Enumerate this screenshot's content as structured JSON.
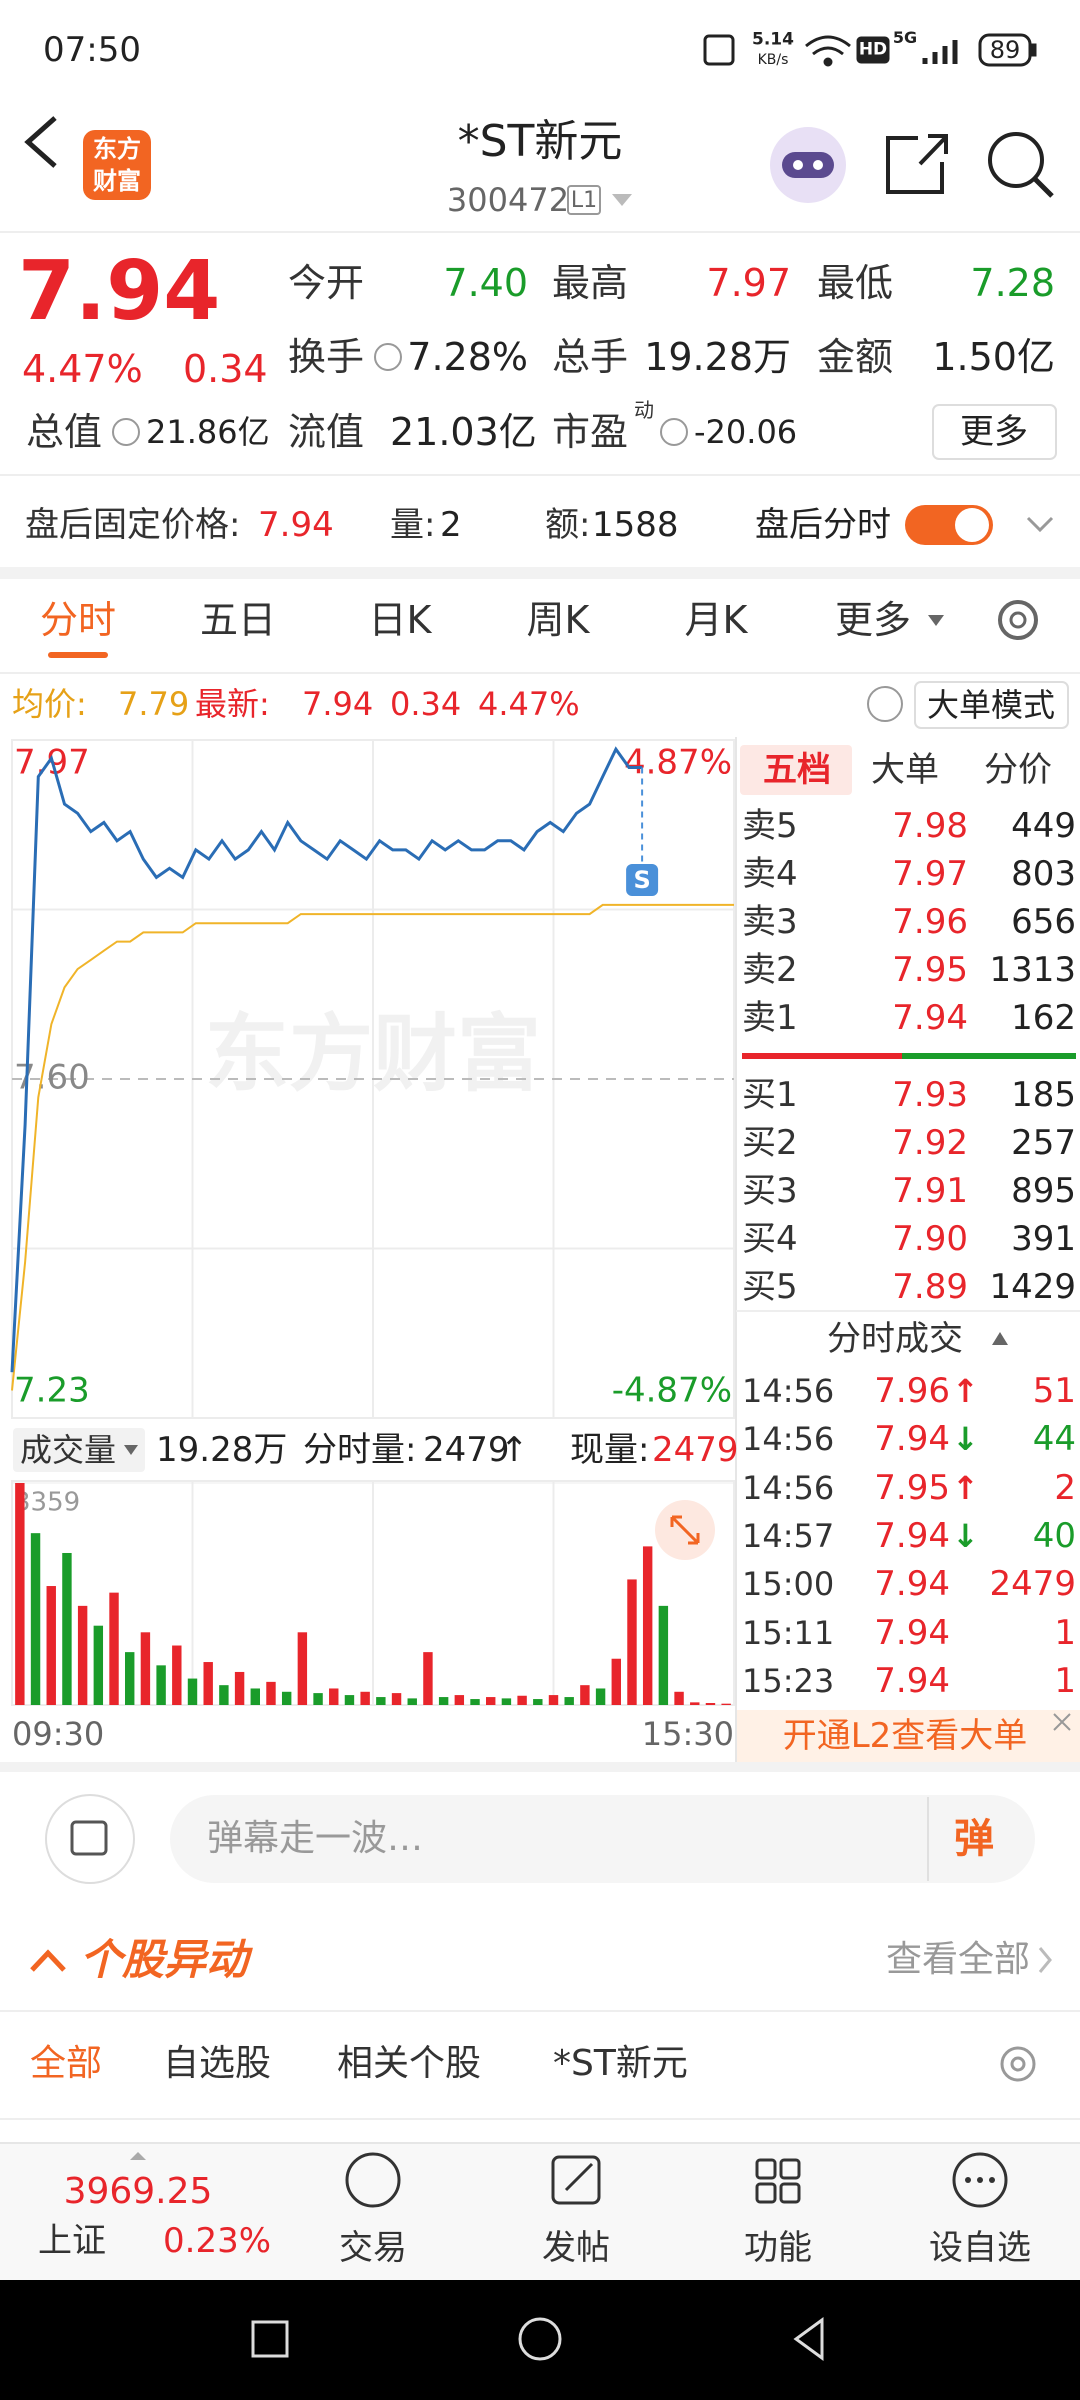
{
  "status": {
    "time": "07:50",
    "speed": "5.14",
    "speed_unit": "KB/s",
    "hd": "HD",
    "network": "5G",
    "battery": "89"
  },
  "header": {
    "logo": [
      "东方",
      "财富"
    ],
    "title": "*ST新元",
    "code": "300472",
    "level": "L1"
  },
  "quote": {
    "price": "7.94",
    "change_pct": "4.47%",
    "change": "0.34",
    "stats": [
      [
        {
          "label": "今开",
          "value": "7.40",
          "color": "#1a9c2a"
        },
        {
          "label": "最高",
          "value": "7.97",
          "color": "#e8252b"
        },
        {
          "label": "最低",
          "value": "7.28",
          "color": "#1a9c2a"
        }
      ],
      [
        {
          "label": "换手",
          "value": "7.28%"
        },
        {
          "label": "总手",
          "value": "19.28万"
        },
        {
          "label": "金额",
          "value": "1.50亿"
        }
      ],
      [
        {
          "label": "总值",
          "value": "21.86亿"
        },
        {
          "label": "流值",
          "value": "21.03亿"
        },
        {
          "label": "市盈",
          "sup": "动",
          "value": "-20.06"
        }
      ]
    ],
    "more": "更多"
  },
  "after_hours": {
    "label": "盘后固定价格:",
    "price": "7.94",
    "vol_label": "量:",
    "vol": "2",
    "amt_label": "额:",
    "amt": "1588",
    "toggle_label": "盘后分时"
  },
  "tabs": [
    "分时",
    "五日",
    "日K",
    "周K",
    "月K",
    "更多"
  ],
  "info": {
    "avg_label": "均价:",
    "avg": "7.79",
    "latest_label": "最新:",
    "latest": "7.94",
    "change": "0.34",
    "pct": "4.47%",
    "mode": "大单模式"
  },
  "chart_data": [
    {
      "type": "line",
      "watermark": "东方财富",
      "marker": "S",
      "series": [
        {
          "color": "#2a6db5",
          "values": [
            7.28,
            7.55,
            7.93,
            7.95,
            7.9,
            7.89,
            7.87,
            7.88,
            7.86,
            7.87,
            7.84,
            7.82,
            7.83,
            7.82,
            7.85,
            7.84,
            7.86,
            7.84,
            7.85,
            7.87,
            7.85,
            7.88,
            7.86,
            7.85,
            7.84,
            7.86,
            7.85,
            7.84,
            7.86,
            7.85,
            7.85,
            7.84,
            7.86,
            7.85,
            7.86,
            7.85,
            7.85,
            7.86,
            7.86,
            7.85,
            7.87,
            7.88,
            7.87,
            7.89,
            7.9,
            7.93,
            7.96,
            7.94,
            7.94,
            null,
            null,
            null,
            null,
            null,
            null,
            null
          ]
        },
        {
          "color": "#f0b429",
          "values": [
            7.26,
            7.4,
            7.58,
            7.66,
            7.7,
            7.72,
            7.73,
            7.74,
            7.75,
            7.75,
            7.76,
            7.76,
            7.76,
            7.76,
            7.77,
            7.77,
            7.77,
            7.77,
            7.77,
            7.77,
            7.77,
            7.77,
            7.78,
            7.78,
            7.78,
            7.78,
            7.78,
            7.78,
            7.78,
            7.78,
            7.78,
            7.78,
            7.78,
            7.78,
            7.78,
            7.78,
            7.78,
            7.78,
            7.78,
            7.78,
            7.78,
            7.78,
            7.78,
            7.78,
            7.78,
            7.79,
            7.79,
            7.79,
            7.79,
            7.79,
            7.79,
            7.79,
            7.79,
            7.79,
            7.79,
            7.79
          ]
        }
      ],
      "ylim": [
        7.23,
        7.97
      ],
      "yticks": [
        7.97,
        {
          "value": 7.6,
          "label": "7.60"
        },
        7.23
      ],
      "tick_colors": [
        "#e8252b",
        "#888888",
        "#1a9c2a"
      ],
      "y2lim": [
        -4.87,
        4.87
      ],
      "y2ticks": [
        {
          "value": 4.87,
          "label": "4.87%"
        },
        {
          "value": -4.87,
          "label": "-4.87%"
        }
      ],
      "y2tick_colors": [
        "#e8252b",
        "#1a9c2a"
      ],
      "grid": true
    },
    {
      "type": "bar",
      "values": [
        3359,
        2600,
        1800,
        2300,
        1500,
        1200,
        1700,
        800,
        1100,
        600,
        900,
        400,
        650,
        300,
        500,
        250,
        350,
        200,
        1100,
        180,
        250,
        150,
        200,
        120,
        180,
        100,
        800,
        120,
        150,
        90,
        120,
        100,
        140,
        90,
        150,
        120,
        300,
        250,
        700,
        1900,
        2400,
        1500,
        200,
        40,
        30,
        20
      ],
      "colors": [
        "#e8252b",
        "#1a9c2a",
        "#e8252b",
        "#1a9c2a",
        "#e8252b",
        "#1a9c2a",
        "#e8252b",
        "#1a9c2a",
        "#e8252b",
        "#1a9c2a",
        "#e8252b",
        "#1a9c2a",
        "#e8252b",
        "#1a9c2a",
        "#e8252b",
        "#1a9c2a",
        "#e8252b",
        "#1a9c2a",
        "#e8252b",
        "#1a9c2a",
        "#e8252b",
        "#1a9c2a",
        "#e8252b",
        "#1a9c2a",
        "#e8252b",
        "#1a9c2a",
        "#e8252b",
        "#1a9c2a",
        "#e8252b",
        "#1a9c2a",
        "#e8252b",
        "#1a9c2a",
        "#e8252b",
        "#1a9c2a",
        "#e8252b",
        "#1a9c2a",
        "#e8252b",
        "#1a9c2a",
        "#e8252b",
        "#e8252b",
        "#e8252b",
        "#1a9c2a",
        "#e8252b",
        "#e8252b",
        "#e8252b",
        "#e8252b"
      ],
      "ylim": [
        0,
        3359
      ],
      "yticks": [
        3359
      ],
      "xticks": [
        "09:30",
        "15:30"
      ]
    }
  ],
  "volume_header": {
    "label": "成交量",
    "total": "19.28万",
    "period_label": "分时量:",
    "period": "2479",
    "period_arrow": "↑",
    "current_label": "现量:",
    "current": "2479"
  },
  "order_book": {
    "tabs": [
      "五档",
      "大单",
      "分价"
    ],
    "asks": [
      {
        "label": "卖5",
        "price": "7.98",
        "vol": "449"
      },
      {
        "label": "卖4",
        "price": "7.97",
        "vol": "803"
      },
      {
        "label": "卖3",
        "price": "7.96",
        "vol": "656"
      },
      {
        "label": "卖2",
        "price": "7.95",
        "vol": "1313"
      },
      {
        "label": "卖1",
        "price": "7.94",
        "vol": "162"
      }
    ],
    "bids": [
      {
        "label": "买1",
        "price": "7.93",
        "vol": "185"
      },
      {
        "label": "买2",
        "price": "7.92",
        "vol": "257"
      },
      {
        "label": "买3",
        "price": "7.91",
        "vol": "895"
      },
      {
        "label": "买4",
        "price": "7.90",
        "vol": "391"
      },
      {
        "label": "买5",
        "price": "7.89",
        "vol": "1429"
      }
    ],
    "trades_title": "分时成交",
    "trades": [
      {
        "time": "14:56",
        "price": "7.96",
        "arrow": "↑",
        "vol": "51",
        "color": "#e8252b"
      },
      {
        "time": "14:56",
        "price": "7.94",
        "arrow": "↓",
        "vol": "44",
        "color": "#1a9c2a"
      },
      {
        "time": "14:56",
        "price": "7.95",
        "arrow": "↑",
        "vol": "2",
        "color": "#e8252b"
      },
      {
        "time": "14:57",
        "price": "7.94",
        "arrow": "↓",
        "vol": "40",
        "color": "#1a9c2a"
      },
      {
        "time": "15:00",
        "price": "7.94",
        "vol": "2479",
        "color": "#e8252b"
      },
      {
        "time": "15:11",
        "price": "7.94",
        "vol": "1",
        "color": "#e8252b"
      },
      {
        "time": "15:23",
        "price": "7.94",
        "vol": "1",
        "color": "#e8252b"
      }
    ],
    "promo": "开通L2查看大单"
  },
  "comment": {
    "placeholder": "弹幕走一波…",
    "button": "弹"
  },
  "movement": {
    "title": "个股异动",
    "link": "查看全部"
  },
  "filters": [
    "全部",
    "自选股",
    "相关个股",
    "*ST新元"
  ],
  "bottom_nav": {
    "index_value": "3969.25",
    "index_name": "上证",
    "index_pct": "0.23%",
    "items": [
      "交易",
      "发帖",
      "功能",
      "设自选"
    ]
  }
}
